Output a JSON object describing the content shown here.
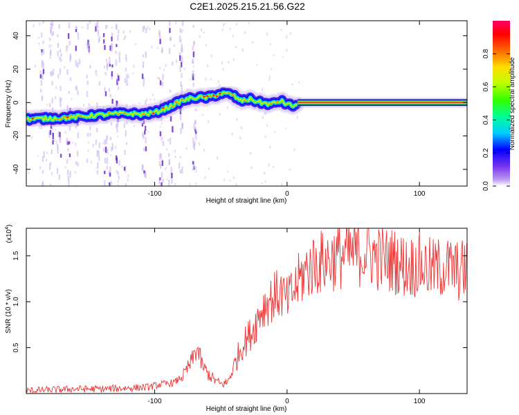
{
  "page": {
    "title": "C2E1.2025.215.21.56.G22"
  },
  "chart_data": [
    {
      "type": "heatmap",
      "xlabel": "Height of straight line (km)",
      "ylabel": "Frequency (Hz)",
      "xlim": [
        -197,
        136
      ],
      "ylim": [
        -50,
        49
      ],
      "xticks": [
        -100,
        0,
        100
      ],
      "yticks": [
        40,
        20,
        0,
        -20,
        -40
      ],
      "colorbar": {
        "label": "Normalized spectral amplitude",
        "range": [
          0.0,
          1.0
        ],
        "ticks": [
          0.0,
          0.2,
          0.4,
          0.6,
          0.8
        ],
        "colors": [
          "#ffffff",
          "#bb99ee",
          "#0000ff",
          "#00ccff",
          "#00ff66",
          "#66ff00",
          "#ffff00",
          "#ff8800",
          "#ff0000",
          "#ff0066"
        ]
      },
      "ridge": {
        "x": [
          -197,
          -180,
          -165,
          -150,
          -135,
          -120,
          -110,
          -100,
          -90,
          -80,
          -70,
          -60,
          -50,
          -42,
          -35,
          -28,
          -20,
          -12,
          -5,
          0,
          5,
          10,
          50,
          100,
          136
        ],
        "y": [
          -10,
          -9.5,
          -9,
          -8,
          -7,
          -6.5,
          -7,
          -6,
          -3,
          1,
          3,
          3,
          5.5,
          5,
          1,
          2,
          0,
          -1,
          1,
          -1,
          -2,
          0,
          0,
          0,
          0
        ]
      }
    },
    {
      "type": "line",
      "xlabel": "Height of straight line (km)",
      "ylabel": "SNR (10 * v/v)",
      "y_multiplier": "(x10",
      "y_exponent": "4",
      "xlim": [
        -197,
        136
      ],
      "ylim": [
        0,
        1.8
      ],
      "xticks": [
        -100,
        0,
        100
      ],
      "yticks": [
        0.5,
        1.0,
        1.5
      ],
      "series": [
        {
          "color": "#ee3333",
          "x": [
            -197,
            -180,
            -160,
            -140,
            -120,
            -105,
            -95,
            -85,
            -78,
            -72,
            -68,
            -64,
            -60,
            -55,
            -50,
            -45,
            -40,
            -35,
            -30,
            -25,
            -20,
            -15,
            -10,
            -5,
            0,
            5,
            10,
            15,
            20,
            30,
            40,
            50,
            60,
            70,
            80,
            90,
            100,
            110,
            120,
            130,
            136
          ],
          "y": [
            0.03,
            0.04,
            0.05,
            0.05,
            0.06,
            0.07,
            0.1,
            0.12,
            0.2,
            0.35,
            0.5,
            0.3,
            0.22,
            0.15,
            0.1,
            0.12,
            0.3,
            0.5,
            0.6,
            0.72,
            0.9,
            1.0,
            1.05,
            1.1,
            1.0,
            1.12,
            1.25,
            1.35,
            1.4,
            1.45,
            1.5,
            1.52,
            1.55,
            1.47,
            1.45,
            1.38,
            1.4,
            1.35,
            1.38,
            1.33,
            1.36
          ]
        }
      ]
    }
  ]
}
